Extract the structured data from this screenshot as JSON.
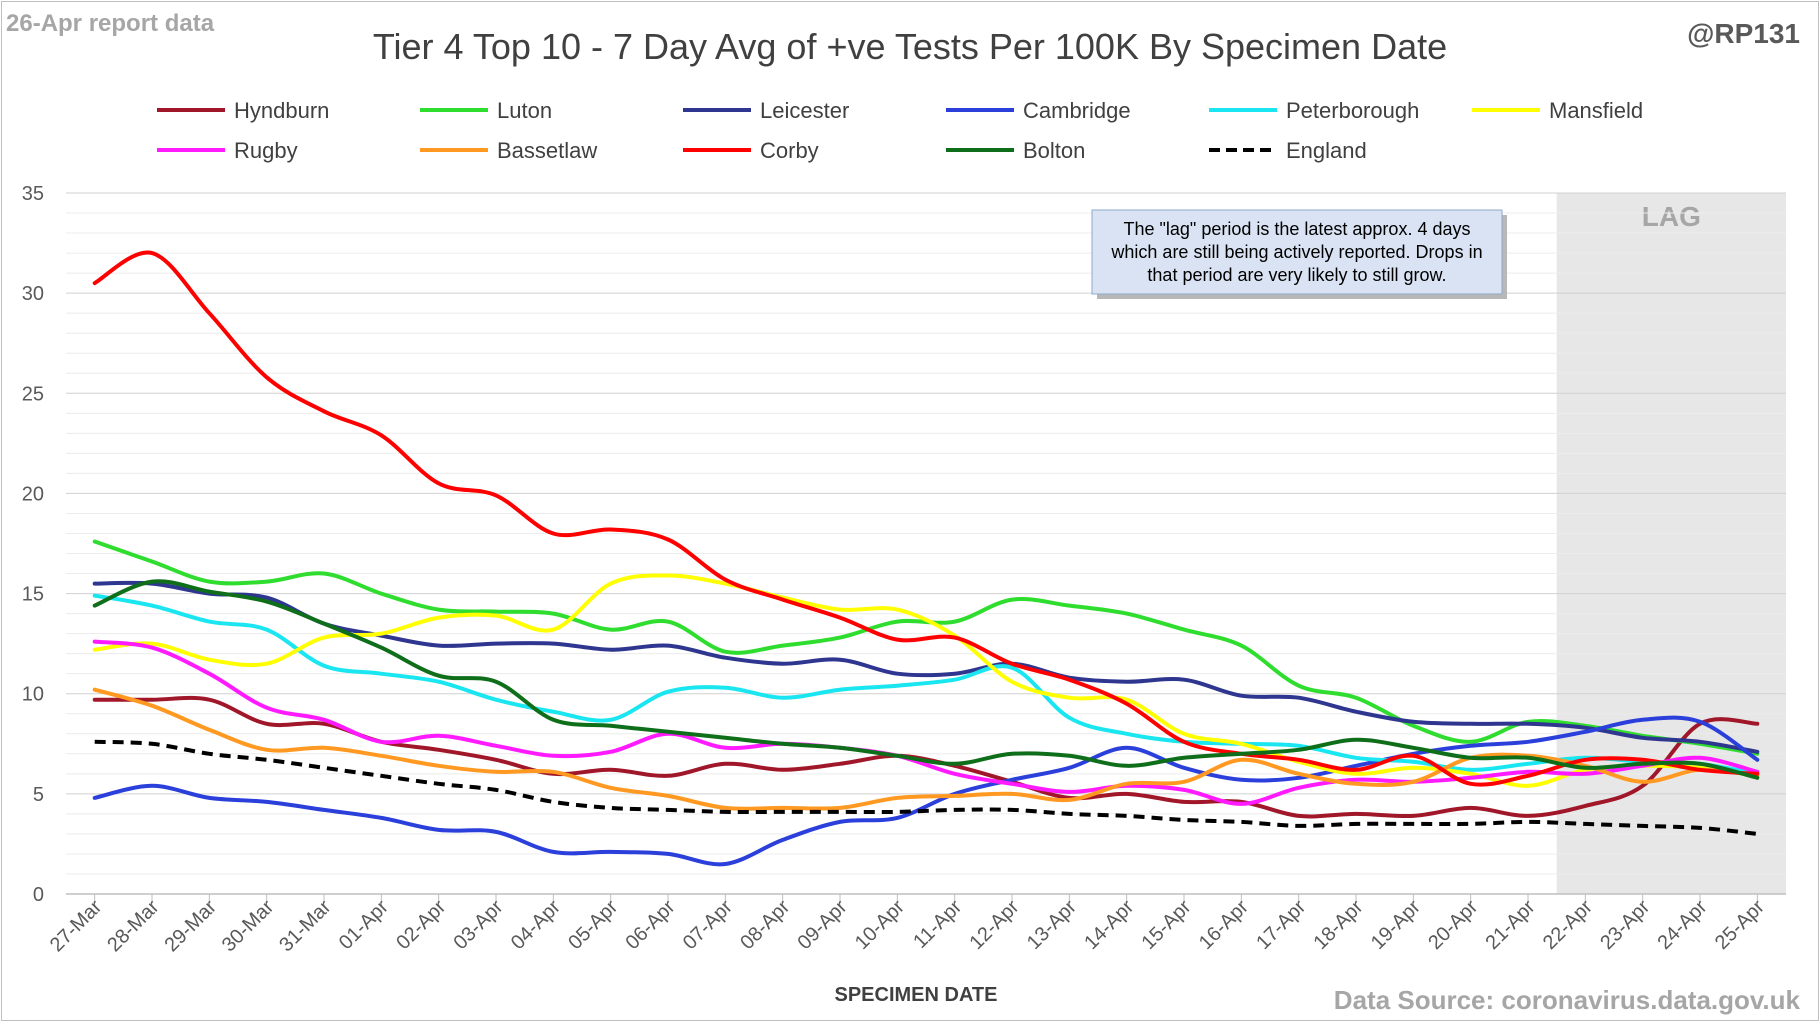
{
  "header": {
    "report_label": "26-Apr report data",
    "handle": "@RP131",
    "source": "Data Source: coronavirus.data.gov.uk"
  },
  "chart_data": {
    "type": "line",
    "title": "Tier 4 Top 10 - 7 Day Avg of +ve Tests Per 100K By Specimen Date",
    "xlabel": "SPECIMEN DATE",
    "ylabel": "",
    "ylim": [
      0,
      35
    ],
    "yticks": [
      0,
      5,
      10,
      15,
      20,
      25,
      30,
      35
    ],
    "grid": true,
    "minor_grid": true,
    "legend_position": "top",
    "categories": [
      "27-Mar",
      "28-Mar",
      "29-Mar",
      "30-Mar",
      "31-Mar",
      "01-Apr",
      "02-Apr",
      "03-Apr",
      "04-Apr",
      "05-Apr",
      "06-Apr",
      "07-Apr",
      "08-Apr",
      "09-Apr",
      "10-Apr",
      "11-Apr",
      "12-Apr",
      "13-Apr",
      "14-Apr",
      "15-Apr",
      "16-Apr",
      "17-Apr",
      "18-Apr",
      "19-Apr",
      "20-Apr",
      "21-Apr",
      "22-Apr",
      "23-Apr",
      "24-Apr",
      "25-Apr"
    ],
    "lag": {
      "label": "LAG",
      "start": "22-Apr",
      "end": "25-Apr"
    },
    "annotation": "The \"lag\" period is the latest approx. 4 days which are still being actively reported.  Drops in that period are very likely to still grow.",
    "series": [
      {
        "name": "Hyndburn",
        "color": "#a0172a",
        "dashed": false,
        "values": [
          9.7,
          9.7,
          9.7,
          8.5,
          8.5,
          7.6,
          7.2,
          6.7,
          6.0,
          6.2,
          5.9,
          6.5,
          6.2,
          6.5,
          6.9,
          6.4,
          5.6,
          4.8,
          5.0,
          4.6,
          4.6,
          3.9,
          4.0,
          3.9,
          4.3,
          3.9,
          4.4,
          5.4,
          8.5,
          8.5
        ]
      },
      {
        "name": "Luton",
        "color": "#2edd2e",
        "dashed": false,
        "values": [
          17.6,
          16.6,
          15.6,
          15.6,
          16.0,
          15.0,
          14.2,
          14.1,
          14.0,
          13.2,
          13.6,
          12.1,
          12.4,
          12.8,
          13.6,
          13.6,
          14.7,
          14.4,
          14.0,
          13.2,
          12.4,
          10.4,
          9.8,
          8.4,
          7.6,
          8.6,
          8.4,
          7.9,
          7.5,
          7.0
        ]
      },
      {
        "name": "Leicester",
        "color": "#2e3690",
        "dashed": false,
        "values": [
          15.5,
          15.5,
          15.0,
          14.8,
          13.5,
          12.9,
          12.4,
          12.5,
          12.5,
          12.2,
          12.4,
          11.8,
          11.5,
          11.7,
          11.0,
          11.0,
          11.5,
          10.8,
          10.6,
          10.7,
          9.9,
          9.8,
          9.1,
          8.6,
          8.5,
          8.5,
          8.3,
          7.8,
          7.6,
          7.1
        ]
      },
      {
        "name": "Cambridge",
        "color": "#2b3fdb",
        "dashed": false,
        "values": [
          4.8,
          5.4,
          4.8,
          4.6,
          4.2,
          3.8,
          3.2,
          3.1,
          2.1,
          2.1,
          2.0,
          1.5,
          2.7,
          3.6,
          3.8,
          5.0,
          5.7,
          6.3,
          7.3,
          6.3,
          5.7,
          5.8,
          6.4,
          7.0,
          7.4,
          7.6,
          8.1,
          8.7,
          8.6,
          6.7
        ]
      },
      {
        "name": "Peterborough",
        "color": "#19e6f0",
        "dashed": false,
        "values": [
          14.9,
          14.4,
          13.6,
          13.2,
          11.4,
          11.0,
          10.6,
          9.7,
          9.1,
          8.7,
          10.1,
          10.3,
          9.8,
          10.2,
          10.4,
          10.7,
          11.3,
          8.8,
          8.0,
          7.6,
          7.5,
          7.4,
          6.8,
          6.6,
          6.2,
          6.5,
          6.8,
          6.6,
          6.5,
          6.0
        ]
      },
      {
        "name": "Mansfield",
        "color": "#ffff00",
        "dashed": false,
        "values": [
          12.2,
          12.5,
          11.7,
          11.5,
          12.8,
          13.0,
          13.8,
          13.9,
          13.2,
          15.5,
          15.9,
          15.5,
          14.8,
          14.2,
          14.2,
          12.9,
          10.6,
          9.8,
          9.7,
          8.0,
          7.5,
          6.6,
          6.0,
          6.3,
          6.0,
          5.4,
          6.2,
          6.4,
          6.3,
          5.9
        ]
      },
      {
        "name": "Rugby",
        "color": "#ff1aff",
        "dashed": false,
        "values": [
          12.6,
          12.3,
          11.0,
          9.3,
          8.7,
          7.6,
          7.9,
          7.4,
          6.9,
          7.1,
          8.0,
          7.3,
          7.5,
          7.3,
          6.9,
          6.0,
          5.5,
          5.1,
          5.4,
          5.2,
          4.5,
          5.3,
          5.7,
          5.6,
          5.8,
          6.1,
          6.0,
          6.4,
          6.8,
          6.1
        ]
      },
      {
        "name": "Bassetlaw",
        "color": "#ff9922",
        "dashed": false,
        "values": [
          10.2,
          9.4,
          8.2,
          7.2,
          7.3,
          6.9,
          6.4,
          6.1,
          6.1,
          5.3,
          4.9,
          4.3,
          4.3,
          4.3,
          4.8,
          4.9,
          5.0,
          4.7,
          5.5,
          5.6,
          6.7,
          6.0,
          5.5,
          5.6,
          6.8,
          6.9,
          6.4,
          5.6,
          6.2,
          5.9
        ]
      },
      {
        "name": "Corby",
        "color": "#ff0000",
        "dashed": false,
        "values": [
          30.5,
          32.0,
          29.0,
          25.8,
          24.1,
          22.9,
          20.5,
          19.9,
          18.0,
          18.2,
          17.7,
          15.7,
          14.7,
          13.8,
          12.7,
          12.8,
          11.5,
          10.7,
          9.5,
          7.6,
          7.0,
          6.7,
          6.2,
          6.9,
          5.5,
          5.9,
          6.7,
          6.7,
          6.2,
          6.0
        ]
      },
      {
        "name": "Bolton",
        "color": "#0f6e1a",
        "dashed": false,
        "values": [
          14.4,
          15.6,
          15.1,
          14.6,
          13.5,
          12.3,
          10.9,
          10.6,
          8.7,
          8.4,
          8.1,
          7.8,
          7.5,
          7.3,
          6.9,
          6.5,
          7.0,
          6.9,
          6.4,
          6.8,
          7.0,
          7.2,
          7.7,
          7.3,
          6.8,
          6.8,
          6.3,
          6.5,
          6.5,
          5.8
        ]
      },
      {
        "name": "England",
        "color": "#000000",
        "dashed": true,
        "values": [
          7.6,
          7.5,
          7.0,
          6.7,
          6.3,
          5.9,
          5.5,
          5.2,
          4.6,
          4.3,
          4.2,
          4.1,
          4.1,
          4.1,
          4.1,
          4.2,
          4.2,
          4.0,
          3.9,
          3.7,
          3.6,
          3.4,
          3.5,
          3.5,
          3.5,
          3.6,
          3.5,
          3.4,
          3.3,
          3.0
        ]
      }
    ]
  }
}
